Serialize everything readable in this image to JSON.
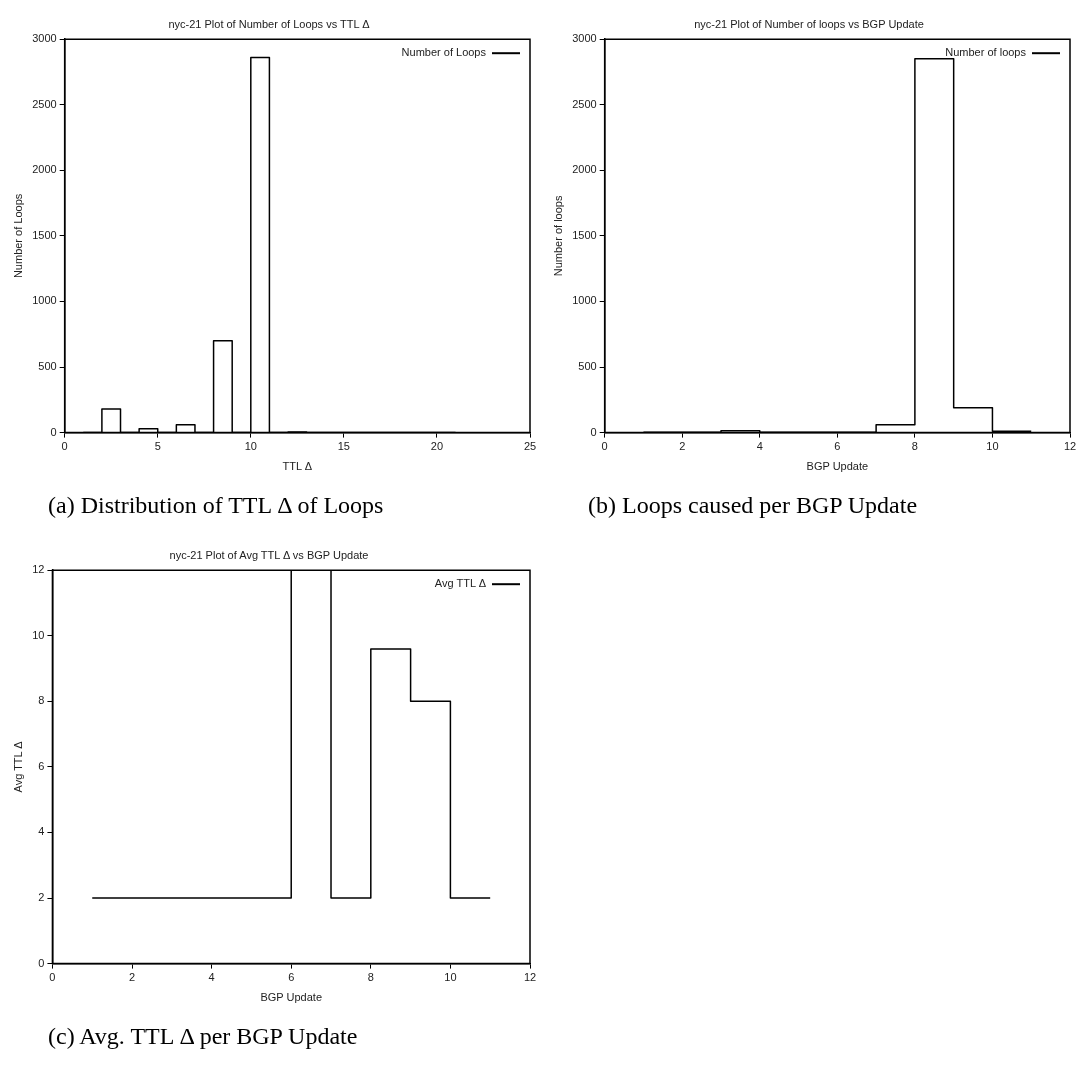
{
  "chart_data": [
    {
      "type": "step",
      "title": "nyc-21 Plot of Number of Loops vs TTL Δ",
      "xlabel": "TTL Δ",
      "ylabel": "Number of Loops",
      "x": [
        1,
        2,
        3,
        4,
        5,
        6,
        7,
        8,
        9,
        10,
        11,
        12,
        13,
        14,
        15,
        16,
        17,
        18,
        19,
        20,
        21
      ],
      "series": [
        {
          "name": "Number of Loops",
          "color": "#000000",
          "values": [
            0,
            180,
            0,
            30,
            0,
            60,
            0,
            700,
            0,
            2860,
            0,
            5,
            0,
            0,
            0,
            0,
            0,
            0,
            0,
            0,
            0
          ]
        }
      ],
      "xlim": [
        0,
        25
      ],
      "xticks": [
        0,
        5,
        10,
        15,
        20,
        25
      ],
      "ylim": [
        0,
        3000
      ],
      "yticks": [
        0,
        500,
        1000,
        1500,
        2000,
        2500,
        3000
      ],
      "legend": "top right",
      "annotations": [
        "(a) Distribution of TTL Δ of Loops"
      ]
    },
    {
      "type": "step",
      "title": "nyc-21 Plot of Number of loops vs BGP Update",
      "xlabel": "BGP Update",
      "ylabel": "Number of loops",
      "x": [
        1,
        2,
        3,
        4,
        5,
        6,
        7,
        8,
        9,
        10,
        11
      ],
      "series": [
        {
          "name": "Number of loops",
          "color": "#000000",
          "values": [
            3,
            3,
            15,
            3,
            2,
            3,
            60,
            2850,
            190,
            10,
            10
          ]
        }
      ],
      "xlim": [
        0,
        12
      ],
      "xticks": [
        0,
        2,
        4,
        6,
        8,
        10,
        12
      ],
      "ylim": [
        0,
        3000
      ],
      "yticks": [
        0,
        500,
        1000,
        1500,
        2000,
        2500,
        3000
      ],
      "legend": "top right",
      "annotations": [
        "(b) Loops caused per BGP Update"
      ]
    },
    {
      "type": "step",
      "title": "nyc-21 Plot of Avg TTL Δ vs BGP Update",
      "xlabel": "BGP Update",
      "ylabel": "Avg TTL Δ",
      "x": [
        1,
        2,
        3,
        4,
        5,
        6,
        7,
        8,
        9,
        10,
        11
      ],
      "series": [
        {
          "name": "Avg TTL Δ",
          "color": "#000000",
          "values": [
            2,
            2,
            2,
            2,
            2,
            12,
            2,
            9.6,
            8,
            2,
            2
          ]
        }
      ],
      "xlim": [
        0,
        12
      ],
      "xticks": [
        0,
        2,
        4,
        6,
        8,
        10,
        12
      ],
      "ylim": [
        0,
        12
      ],
      "yticks": [
        0,
        2,
        4,
        6,
        8,
        10,
        12
      ],
      "legend": "top right",
      "annotations": [
        "(c) Avg. TTL Δ per BGP Update"
      ]
    }
  ]
}
